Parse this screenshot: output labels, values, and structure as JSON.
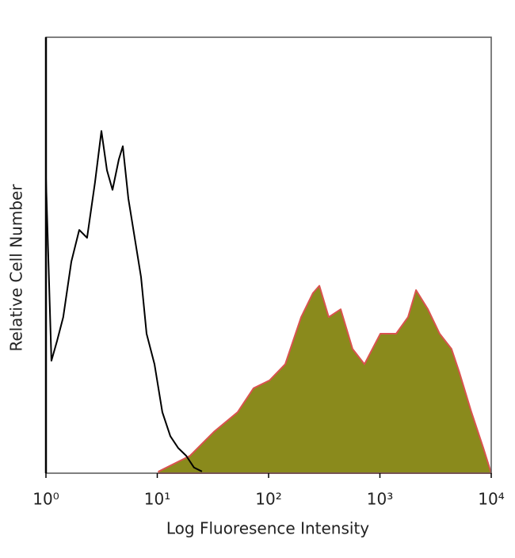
{
  "chart_data": {
    "type": "area",
    "xlabel": "Log Fluoresence Intensity",
    "ylabel": "Relative Cell Number",
    "xscale": "log",
    "xlim": [
      1,
      10000
    ],
    "xticks": [
      {
        "value": 1,
        "label": "10⁰"
      },
      {
        "value": 10,
        "label": "10¹"
      },
      {
        "value": 100,
        "label": "10²"
      },
      {
        "value": 1000,
        "label": "10³"
      },
      {
        "value": 10000,
        "label": "10⁴"
      }
    ],
    "ylim": [
      0,
      100
    ],
    "series": [
      {
        "color": "#8a8a1c",
        "edge_color": "#d9534f",
        "filled": true,
        "x": [
          10.3,
          19.7,
          32.3,
          52.7,
          73.2,
          102,
          141,
          196,
          250,
          286,
          347,
          444,
          568,
          727,
          1010,
          1400,
          1790,
          2110,
          2700,
          3440,
          4400,
          5190,
          6640,
          8490,
          10000
        ],
        "values": [
          0.4,
          4,
          9.5,
          14,
          19.5,
          21.3,
          25,
          35.8,
          41.3,
          43,
          35.8,
          37.6,
          28.5,
          25,
          32,
          32,
          35.8,
          42,
          37.6,
          32,
          28.5,
          23,
          14,
          5.8,
          0
        ]
      },
      {
        "color": "#000000",
        "filled": false,
        "x": [
          1,
          1.12,
          1.26,
          1.43,
          1.69,
          1.99,
          2.34,
          2.76,
          3.15,
          3.53,
          3.96,
          4.52,
          4.9,
          5.5,
          6.27,
          7.15,
          8.01,
          9.44,
          11.1,
          13.1,
          15.4,
          18.2,
          21.4,
          25.2
        ],
        "values": [
          67.6,
          25.8,
          30.4,
          35.8,
          48.5,
          55.8,
          54,
          66.7,
          78.5,
          69.5,
          65,
          72,
          75,
          63,
          54,
          45,
          32,
          25,
          14,
          8.5,
          5.8,
          4,
          1.3,
          0.4
        ]
      }
    ]
  }
}
